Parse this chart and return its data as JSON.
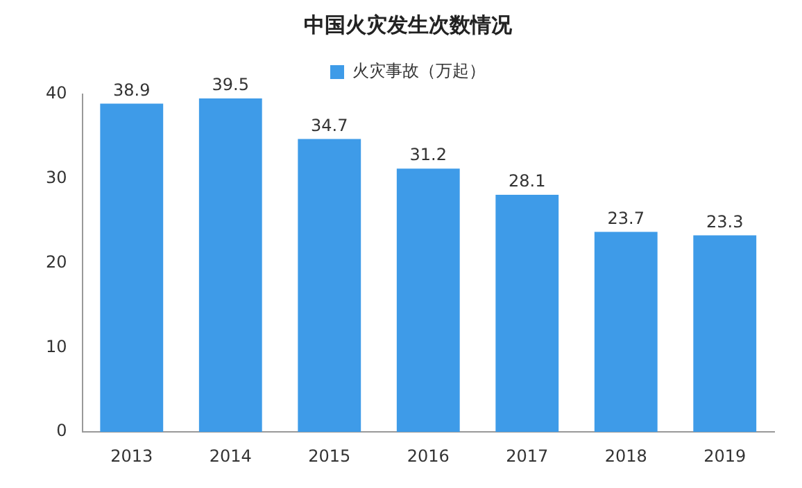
{
  "chart_data": {
    "type": "bar",
    "title": "中国火灾发生次数情况",
    "categories": [
      "2013",
      "2014",
      "2015",
      "2016",
      "2017",
      "2018",
      "2019"
    ],
    "series": [
      {
        "name": "火灾事故（万起）",
        "color": "#3e9be8",
        "values": [
          38.9,
          39.5,
          34.7,
          31.2,
          28.1,
          23.7,
          23.3
        ]
      }
    ],
    "ylim": [
      0,
      40
    ],
    "yticks": [
      0,
      10,
      20,
      30,
      40
    ],
    "grid": false,
    "legend": "top",
    "data_labels": true
  }
}
